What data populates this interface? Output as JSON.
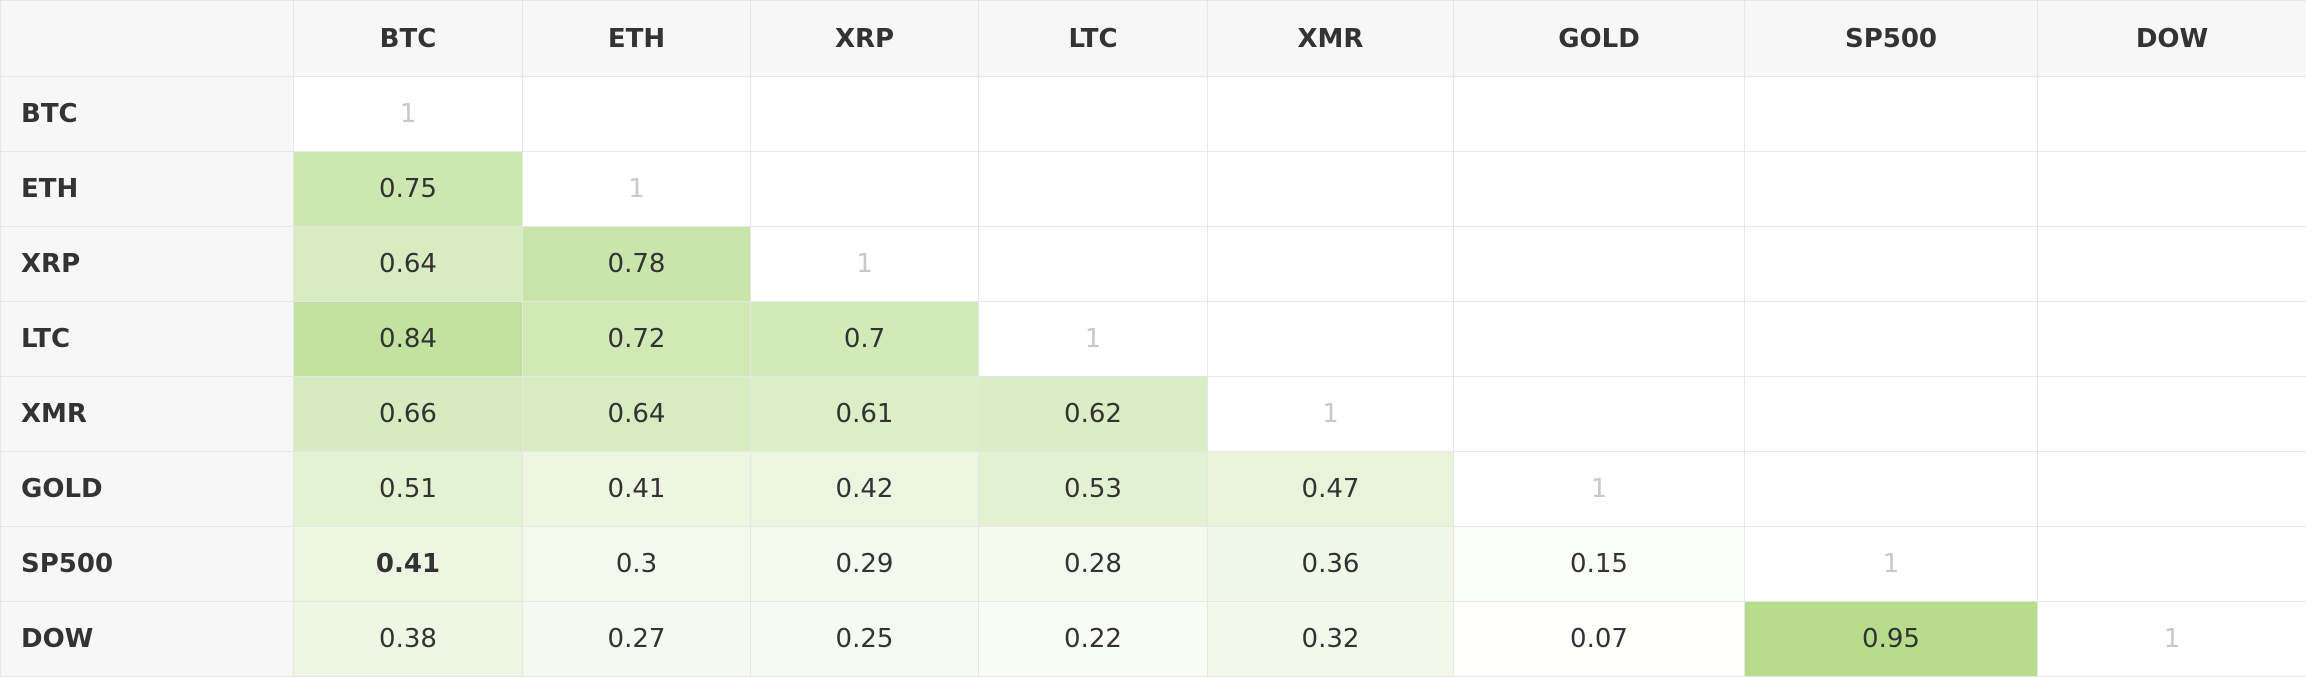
{
  "table": {
    "columns": [
      "BTC",
      "ETH",
      "XRP",
      "LTC",
      "XMR",
      "GOLD",
      "SP500",
      "DOW"
    ],
    "rows": [
      {
        "label": "BTC",
        "values": [
          1
        ]
      },
      {
        "label": "ETH",
        "values": [
          0.75,
          1
        ]
      },
      {
        "label": "XRP",
        "values": [
          0.64,
          0.78,
          1
        ]
      },
      {
        "label": "LTC",
        "values": [
          0.84,
          0.72,
          0.7,
          1
        ]
      },
      {
        "label": "XMR",
        "values": [
          0.66,
          0.64,
          0.61,
          0.62,
          1
        ]
      },
      {
        "label": "GOLD",
        "values": [
          0.51,
          0.41,
          0.42,
          0.53,
          0.47,
          1
        ]
      },
      {
        "label": "SP500",
        "values": [
          0.41,
          0.3,
          0.29,
          0.28,
          0.36,
          0.15,
          1
        ]
      },
      {
        "label": "DOW",
        "values": [
          0.38,
          0.27,
          0.25,
          0.22,
          0.32,
          0.07,
          0.95,
          1
        ]
      }
    ],
    "bold_cells": [
      [
        6,
        0
      ]
    ],
    "color": "#b0d982"
  }
}
